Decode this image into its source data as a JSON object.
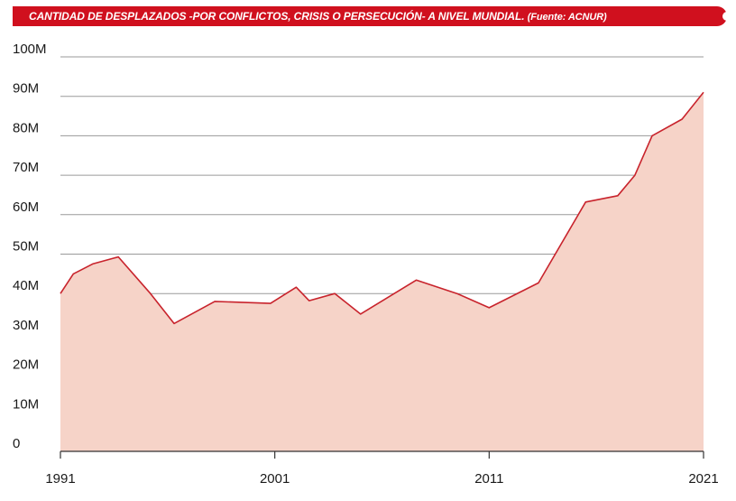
{
  "header": {
    "title": "CANTIDAD DE DESPLAZADOS -POR CONFLICTOS, CRISIS O PERSECUCIÓN- A NIVEL MUNDIAL.",
    "source": "(Fuente: ACNUR)"
  },
  "colors": {
    "title_bar": "#d0101e",
    "line": "#c8232c",
    "area_fill": "#f6d3c8",
    "grid": "#9a9a9a",
    "axis": "#333333"
  },
  "chart_data": {
    "type": "area",
    "title": "CANTIDAD DE DESPLAZADOS -POR CONFLICTOS, CRISIS O PERSECUCIÓN- A NIVEL MUNDIAL.",
    "xlabel": "",
    "ylabel": "",
    "xlim": [
      1991,
      2021
    ],
    "ylim": [
      0,
      100
    ],
    "grid": true,
    "x_ticks": [
      "1991",
      "2001",
      "2011",
      "2021"
    ],
    "y_ticks": [
      "0",
      "10M",
      "20M",
      "30M",
      "40M",
      "50M",
      "60M",
      "70M",
      "80M",
      "90M",
      "100M"
    ],
    "series": [
      {
        "x": [
          1991,
          1991.6,
          1992.5,
          1993.7,
          1995.2,
          1996.3,
          1998.2,
          2000.8,
          2002,
          2002.6,
          2003.8,
          2005,
          2007.6,
          2009.5,
          2011,
          2013.3,
          2015.5,
          2017,
          2017.8,
          2018.6,
          2020,
          2021
        ],
        "values": [
          40,
          45,
          47.5,
          49.3,
          40,
          32.4,
          38,
          37.5,
          41.6,
          38.2,
          40,
          34.8,
          43.4,
          40,
          36.4,
          42.7,
          63.2,
          64.8,
          70,
          80,
          84.2,
          91
        ]
      }
    ]
  }
}
